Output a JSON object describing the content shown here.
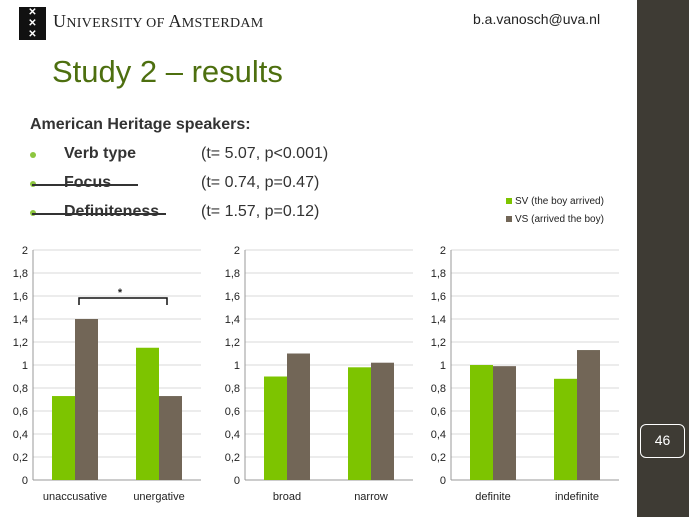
{
  "header": {
    "university_first_U": "U",
    "university_rest1": "NIVERSITY OF ",
    "university_A": "A",
    "university_rest2": "MSTERDAM",
    "email": "b.a.vanosch@uva.nl"
  },
  "slide": {
    "title": "Study 2 – results",
    "subtitle": "American Heritage speakers:",
    "page_number": "46",
    "bullets": [
      {
        "label": "Verb type",
        "stat": "(t= 5.07, p<0.001)",
        "struck": false
      },
      {
        "label": "Focus",
        "stat": "(t= 0.74, p=0.47)",
        "struck": true
      },
      {
        "label": "Definiteness",
        "stat": "(t= 1.57, p=0.12)",
        "struck": true
      }
    ],
    "significance_marker": "*"
  },
  "colors": {
    "accent_green": "#8dc63f",
    "sv": "#7dc400",
    "vs": "#726657",
    "title_green": "#4d6f0f",
    "sidebar": "#3e3b34"
  },
  "chart_data": [
    {
      "type": "bar",
      "categories": [
        "unaccusative",
        "unergative"
      ],
      "series": [
        {
          "name": "SV (the boy arrived)",
          "values": [
            0.73,
            1.15
          ]
        },
        {
          "name": "VS (arrived the boy)",
          "values": [
            1.4,
            0.73
          ]
        }
      ],
      "ylim": [
        0,
        2
      ],
      "yticks": [
        "0",
        "0,2",
        "0,4",
        "0,6",
        "0,8",
        "1",
        "1,2",
        "1,4",
        "1,6",
        "1,8",
        "2"
      ]
    },
    {
      "type": "bar",
      "categories": [
        "broad",
        "narrow"
      ],
      "series": [
        {
          "name": "SV (the boy arrived)",
          "values": [
            0.9,
            0.98
          ]
        },
        {
          "name": "VS (arrived the boy)",
          "values": [
            1.1,
            1.02
          ]
        }
      ],
      "ylim": [
        0,
        2
      ],
      "yticks": [
        "0",
        "0,2",
        "0,4",
        "0,6",
        "0,8",
        "1",
        "1,2",
        "1,4",
        "1,6",
        "1,8",
        "2"
      ]
    },
    {
      "type": "bar",
      "categories": [
        "definite",
        "indefinite"
      ],
      "series": [
        {
          "name": "SV (the boy arrived)",
          "values": [
            1.0,
            0.88
          ]
        },
        {
          "name": "VS (arrived the boy)",
          "values": [
            0.99,
            1.13
          ]
        }
      ],
      "ylim": [
        0,
        2
      ],
      "yticks": [
        "0",
        "0,2",
        "0,4",
        "0,6",
        "0,8",
        "1",
        "1,2",
        "1,4",
        "1,6",
        "1,8",
        "2"
      ]
    }
  ]
}
